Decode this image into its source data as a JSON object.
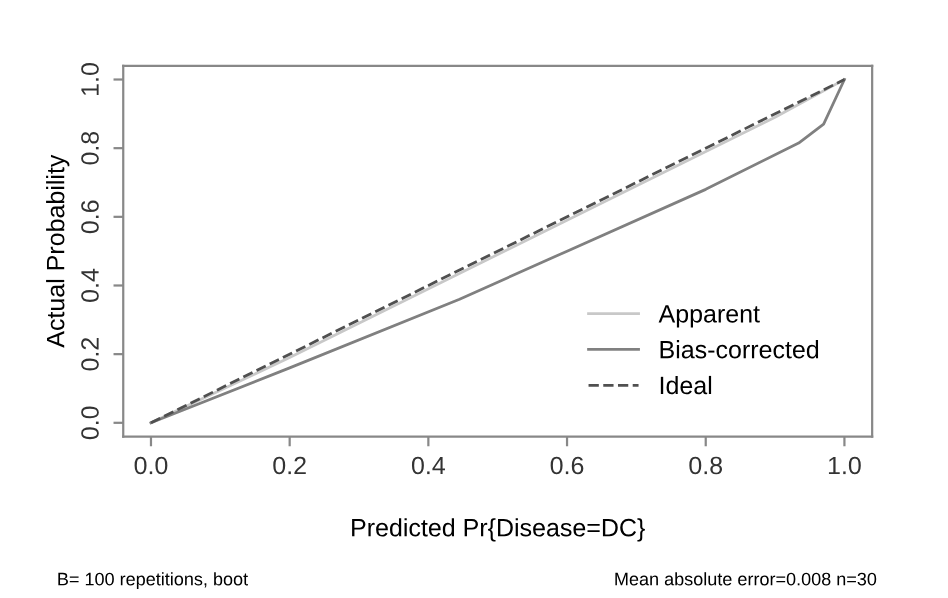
{
  "chart_data": {
    "type": "line",
    "xlabel": "Predicted Pr{Disease=DC}",
    "ylabel": "Actual Probability",
    "xlim": [
      -0.04,
      1.04
    ],
    "ylim": [
      -0.04,
      1.04
    ],
    "xticks": [
      {
        "value": 0,
        "label": "0.0"
      },
      0.2,
      0.4,
      0.6,
      0.8,
      {
        "value": 1,
        "label": "1.0"
      }
    ],
    "yticks": [
      {
        "value": 0,
        "label": "0.0"
      },
      0.2,
      0.4,
      0.6,
      0.8,
      {
        "value": 1,
        "label": "1.0"
      }
    ],
    "grid": false,
    "legend": "bottom right",
    "marker": "none",
    "series": [
      {
        "name": "Apparent",
        "color": "#c8c8c8",
        "line_style": "solid",
        "x": [
          0,
          0.2,
          0.5,
          0.9,
          1.0
        ],
        "values": [
          0,
          0.19,
          0.49,
          0.89,
          1.0
        ]
      },
      {
        "name": "Bias-corrected",
        "color": "#808080",
        "line_style": "solid",
        "x": [
          0,
          0.2,
          0.445,
          0.6,
          0.8,
          0.934,
          0.97,
          1.0
        ],
        "values": [
          0,
          0.16,
          0.36,
          0.5,
          0.68,
          0.815,
          0.87,
          1.0
        ]
      },
      {
        "name": "Ideal",
        "color": "#505050",
        "line_style": "dashed",
        "x": [
          0,
          1
        ],
        "values": [
          0,
          1
        ]
      }
    ],
    "annotations": [
      "B= 100 repetitions, boot",
      "Mean absolute error=0.008 n=30"
    ]
  }
}
